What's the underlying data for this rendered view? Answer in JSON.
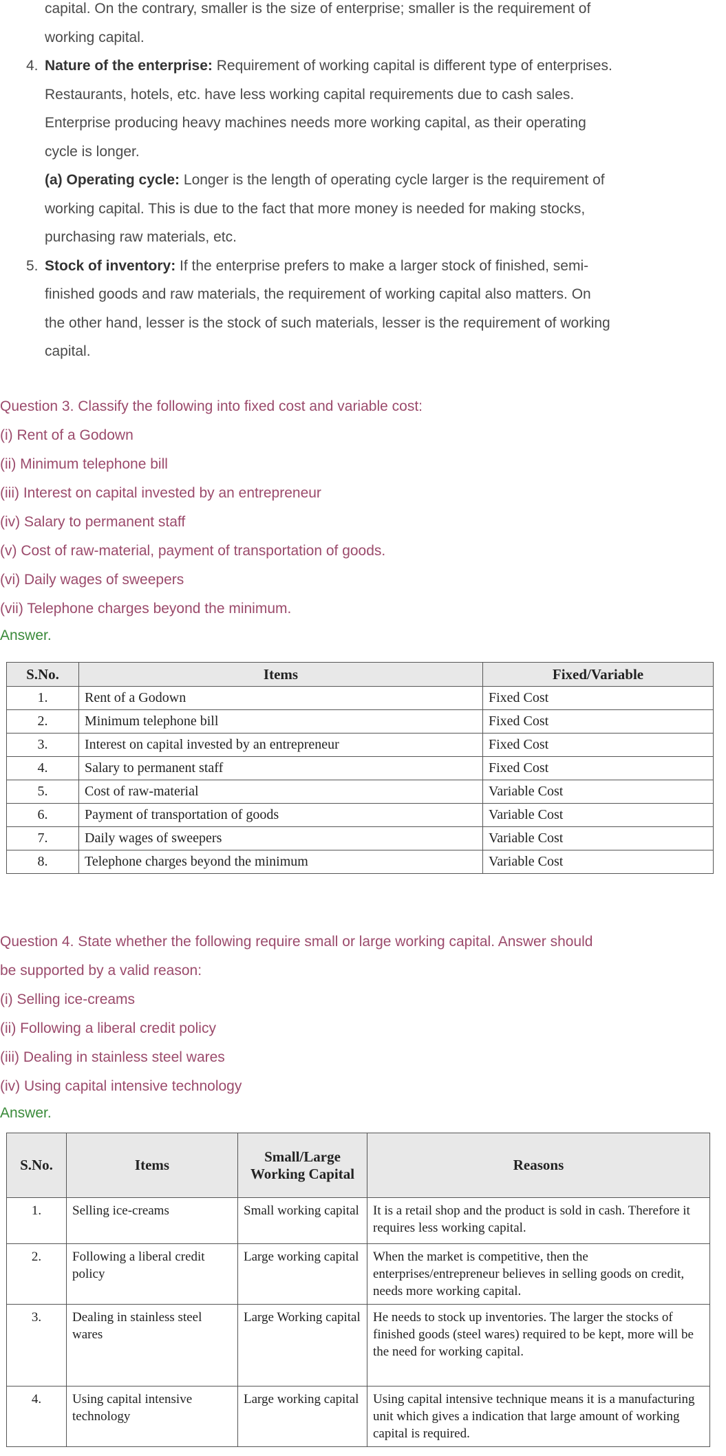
{
  "intro": {
    "continuation": [
      "capital. On the contrary, smaller is the size of enterprise; smaller is the requirement of",
      "working capital."
    ],
    "items": [
      {
        "number": "4.",
        "title": "Nature of the enterprise:",
        "lines": [
          " Requirement of working capital is different type of enterprises.",
          "Restaurants, hotels, etc. have less working capital requirements due to cash sales.",
          "Enterprise producing heavy machines needs more working capital, as their operating",
          "cycle is longer."
        ],
        "sub": {
          "title": "(a) Operating cycle:",
          "lines": [
            " Longer is the length of operating cycle larger is the requirement of",
            "working capital. This is due to the fact that more money is needed for making stocks,",
            "purchasing raw materials, etc."
          ]
        }
      },
      {
        "number": "5.",
        "title": "Stock of inventory:",
        "lines": [
          " If the enterprise prefers to make a larger stock of finished, semi-",
          "finished goods and raw materials, the requirement of working capital also matters. On",
          "the other hand, lesser is the stock of such materials, lesser is the requirement of working",
          "capital."
        ]
      }
    ]
  },
  "q3": {
    "question": "Question 3. Classify the following into fixed cost and variable cost:",
    "parts": [
      "(i) Rent of a Godown",
      "(ii) Minimum telephone bill",
      "(iii) Interest on capital invested by an entrepreneur",
      "(iv) Salary to permanent staff",
      "(v) Cost of raw-material, payment of transportation of goods.",
      "(vi) Daily wages of sweepers",
      "(vii) Telephone charges beyond the minimum."
    ],
    "answer_label": "Answer.",
    "table": {
      "headers": [
        "S.No.",
        "Items",
        "Fixed/Variable"
      ],
      "rows": [
        [
          "1.",
          "Rent of a Godown",
          "Fixed Cost"
        ],
        [
          "2.",
          "Minimum telephone bill",
          "Fixed Cost"
        ],
        [
          "3.",
          "Interest on capital invested by an entrepreneur",
          "Fixed Cost"
        ],
        [
          "4.",
          "Salary to permanent staff",
          "Fixed Cost"
        ],
        [
          "5.",
          "Cost of raw-material",
          "Variable Cost"
        ],
        [
          "6.",
          "Payment of transportation of goods",
          "Variable Cost"
        ],
        [
          "7.",
          "Daily wages of sweepers",
          "Variable Cost"
        ],
        [
          "8.",
          "Telephone charges beyond the minimum",
          "Variable Cost"
        ]
      ]
    }
  },
  "q4": {
    "question_lines": [
      "Question 4. State whether the following require small or large working capital. Answer should",
      "be supported by a valid reason:"
    ],
    "parts": [
      "(i) Selling ice-creams",
      "(ii) Following a liberal credit policy",
      "(iii) Dealing in stainless steel wares",
      "(iv) Using capital intensive technology"
    ],
    "answer_label": "Answer.",
    "table": {
      "headers": [
        "S.No.",
        "Items",
        "Small/Large Working Capital",
        "Reasons"
      ],
      "rows": [
        [
          "1.",
          "Selling ice-creams",
          "Small working capital",
          "It is a retail shop and the product is sold in cash. Therefore it requires less working capital."
        ],
        [
          "2.",
          "Following a liberal credit policy",
          "Large working capital",
          "When the market is competitive, then the enterprises/entrepreneur believes in selling goods on credit, needs more working capital."
        ],
        [
          "3.",
          "Dealing in stainless steel wares",
          "Large Working capital",
          "He needs to stock up inventories. The larger the stocks of finished goods (steel wares) required to be kept, more will be the need for working capital."
        ],
        [
          "4.",
          "Using capital intensive technology",
          "Large working capital",
          "Using capital intensive technique means it is a manufacturing unit which gives a indication that large amount of working capital is required."
        ]
      ]
    }
  },
  "colors": {
    "question": "#9b4a6b",
    "answer": "#3a8a3a",
    "body": "#4a4a4a"
  }
}
